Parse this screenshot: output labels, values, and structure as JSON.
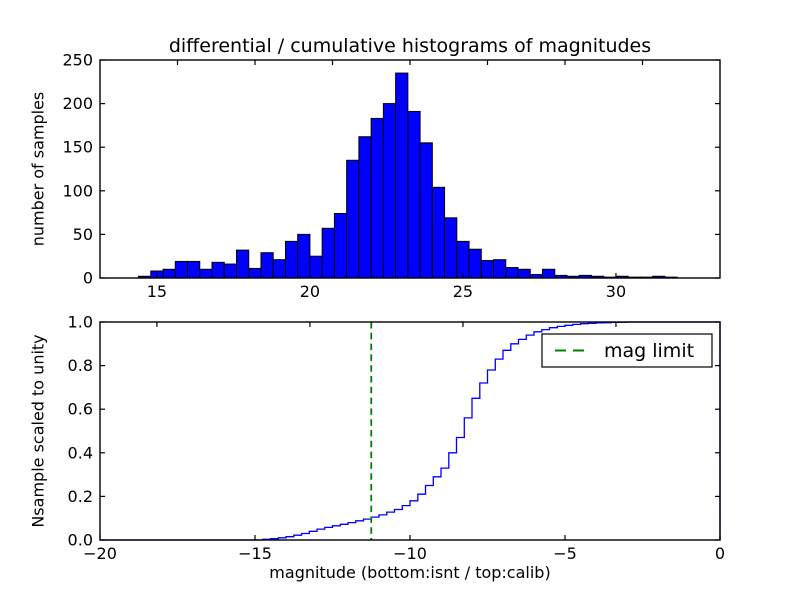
{
  "figure": {
    "title": "differential / cumulative histograms of magnitudes",
    "xlabel": "magnitude (bottom:isnt / top:calib)",
    "background": "#ffffff",
    "colors": {
      "bar_fill": "#0000ff",
      "bar_edge": "#000000",
      "curve": "#0000ff",
      "mag_limit_line": "#008000",
      "frame": "#000000",
      "text": "#000000"
    }
  },
  "chart_data": [
    {
      "type": "bar",
      "name": "differential-histogram",
      "ylabel": "number of samples",
      "xlim": [
        13.14,
        33.4
      ],
      "ylim": [
        0,
        250
      ],
      "grid": false,
      "xticks": {
        "values": [
          15,
          20,
          25,
          30
        ],
        "labels": [
          "15",
          "20",
          "25",
          "30"
        ]
      },
      "yticks": {
        "values": [
          0,
          50,
          100,
          150,
          200,
          250
        ],
        "labels": [
          "0",
          "50",
          "100",
          "150",
          "200",
          "250"
        ]
      },
      "top_edge_ticks": {
        "scale_xlim": [
          -20,
          0
        ],
        "values": [
          -17.5,
          -15,
          -12.5,
          -10,
          -7.5,
          -5,
          -2.5
        ]
      },
      "bins": {
        "start": 14.4,
        "width": 0.4
      },
      "counts": [
        2,
        8,
        10,
        19,
        19,
        10,
        18,
        16,
        32,
        11,
        29,
        21,
        42,
        50,
        25,
        57,
        74,
        135,
        162,
        183,
        200,
        235,
        191,
        155,
        104,
        69,
        42,
        33,
        20,
        21,
        12,
        10,
        4,
        10,
        3,
        2,
        3,
        2,
        1,
        2,
        1,
        1,
        2,
        1
      ]
    },
    {
      "type": "line",
      "name": "cumulative-histogram",
      "ylabel": "Nsample scaled to unity",
      "xlim": [
        -20,
        0
      ],
      "ylim": [
        0,
        1
      ],
      "grid": false,
      "line_style": "step",
      "xticks": {
        "values": [
          -20,
          -15,
          -10,
          -5,
          0
        ],
        "labels": [
          "−20",
          "−15",
          "−10",
          "−5",
          "0"
        ]
      },
      "yticks": {
        "values": [
          0,
          0.2,
          0.4,
          0.6,
          0.8,
          1
        ],
        "labels": [
          "0.0",
          "0.2",
          "0.4",
          "0.6",
          "0.8",
          "1.0"
        ]
      },
      "top_edge_ticks": {
        "scale_xlim": [
          13.14,
          33.4
        ],
        "values": [
          15,
          20,
          25,
          30
        ]
      },
      "points": [
        [
          -20,
          0
        ],
        [
          -14.75,
          0.003
        ],
        [
          -14.5,
          0.006
        ],
        [
          -14.25,
          0.01
        ],
        [
          -14,
          0.015
        ],
        [
          -13.75,
          0.022
        ],
        [
          -13.5,
          0.03
        ],
        [
          -13.25,
          0.04
        ],
        [
          -13,
          0.05
        ],
        [
          -12.75,
          0.058
        ],
        [
          -12.5,
          0.065
        ],
        [
          -12.25,
          0.072
        ],
        [
          -12,
          0.08
        ],
        [
          -11.75,
          0.088
        ],
        [
          -11.5,
          0.096
        ],
        [
          -11.25,
          0.105
        ],
        [
          -11,
          0.115
        ],
        [
          -10.75,
          0.128
        ],
        [
          -10.5,
          0.14
        ],
        [
          -10.25,
          0.158
        ],
        [
          -10,
          0.18
        ],
        [
          -9.75,
          0.21
        ],
        [
          -9.5,
          0.25
        ],
        [
          -9.25,
          0.29
        ],
        [
          -9,
          0.33
        ],
        [
          -8.75,
          0.4
        ],
        [
          -8.5,
          0.47
        ],
        [
          -8.25,
          0.56
        ],
        [
          -8,
          0.65
        ],
        [
          -7.75,
          0.72
        ],
        [
          -7.5,
          0.78
        ],
        [
          -7.25,
          0.83
        ],
        [
          -7,
          0.87
        ],
        [
          -6.75,
          0.9
        ],
        [
          -6.5,
          0.92
        ],
        [
          -6.25,
          0.94
        ],
        [
          -6,
          0.955
        ],
        [
          -5.75,
          0.965
        ],
        [
          -5.5,
          0.974
        ],
        [
          -5.25,
          0.98
        ],
        [
          -5,
          0.985
        ],
        [
          -4.75,
          0.989
        ],
        [
          -4.5,
          0.992
        ],
        [
          -4.25,
          0.994
        ],
        [
          -4,
          0.996
        ],
        [
          -3.75,
          0.997
        ],
        [
          -3.5,
          0.998
        ],
        [
          -3.25,
          0.999
        ],
        [
          -3,
          1
        ],
        [
          0,
          1
        ]
      ],
      "closes_to_zero_at_right_edge": true,
      "vlines": [
        {
          "x": -11.25,
          "label": "mag limit",
          "color": "#008000",
          "style": "dashed"
        }
      ],
      "legend": {
        "label": "mag limit",
        "loc": "upper right"
      }
    }
  ]
}
